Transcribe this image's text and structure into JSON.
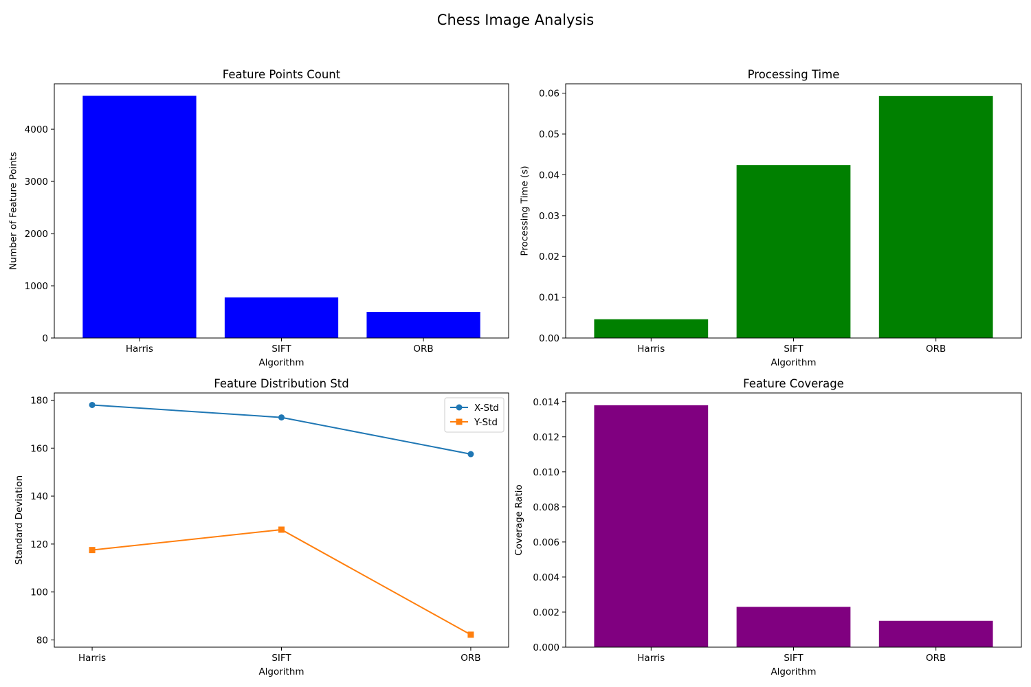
{
  "title": "Chess Image Analysis",
  "chart_data": [
    {
      "id": "count",
      "type": "bar",
      "title": "Feature Points Count",
      "xlabel": "Algorithm",
      "ylabel": "Number of Feature Points",
      "categories": [
        "Harris",
        "SIFT",
        "ORB"
      ],
      "values": [
        4640,
        778,
        500
      ],
      "ylim": [
        0,
        4870
      ],
      "yticks": [
        0,
        1000,
        2000,
        3000,
        4000
      ],
      "tick_decimals": 0,
      "color": "#0000ff",
      "grid": false
    },
    {
      "id": "time",
      "type": "bar",
      "title": "Processing Time",
      "xlabel": "Algorithm",
      "ylabel": "Processing Time (s)",
      "categories": [
        "Harris",
        "SIFT",
        "ORB"
      ],
      "values": [
        0.0046,
        0.0424,
        0.0593
      ],
      "ylim": [
        0,
        0.0623
      ],
      "yticks": [
        0,
        0.01,
        0.02,
        0.03,
        0.04,
        0.05,
        0.06
      ],
      "tick_decimals": 2,
      "color": "#008000",
      "grid": false
    },
    {
      "id": "dist",
      "type": "line",
      "title": "Feature Distribution Std",
      "xlabel": "Algorithm",
      "ylabel": "Standard Deviation",
      "categories": [
        "Harris",
        "SIFT",
        "ORB"
      ],
      "series": [
        {
          "name": "X-Std",
          "values": [
            178.0,
            172.8,
            157.5
          ],
          "color": "#1f77b4",
          "marker": "circle"
        },
        {
          "name": "Y-Std",
          "values": [
            117.5,
            126.0,
            82.2
          ],
          "color": "#ff7f0e",
          "marker": "square"
        }
      ],
      "ylim": [
        77.0,
        183.0
      ],
      "yticks": [
        80,
        100,
        120,
        140,
        160,
        180
      ],
      "tick_decimals": 0,
      "legend": "top-right",
      "grid": false
    },
    {
      "id": "coverage",
      "type": "bar",
      "title": "Feature Coverage",
      "xlabel": "Algorithm",
      "ylabel": "Coverage Ratio",
      "categories": [
        "Harris",
        "SIFT",
        "ORB"
      ],
      "values": [
        0.0138,
        0.0023,
        0.0015
      ],
      "ylim": [
        0,
        0.0145
      ],
      "yticks": [
        0,
        0.002,
        0.004,
        0.006,
        0.008,
        0.01,
        0.012,
        0.014
      ],
      "tick_decimals": 3,
      "color": "#800080",
      "grid": false
    }
  ]
}
